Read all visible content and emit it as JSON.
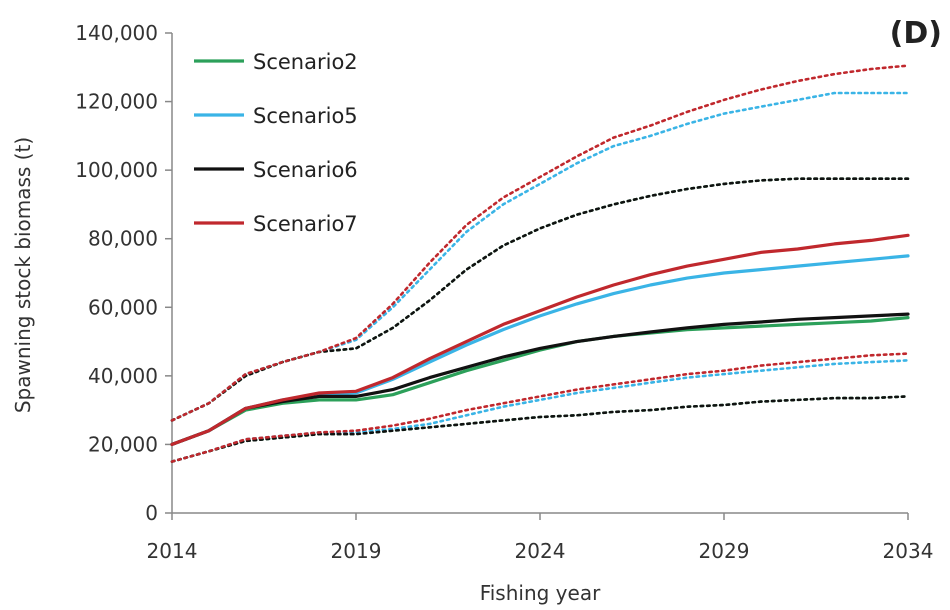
{
  "chart_data": {
    "type": "line",
    "panel_label": "(D)",
    "xlabel": "Fishing year",
    "ylabel": "Spawning stock biomass (t)",
    "xlim": [
      2014,
      2034
    ],
    "ylim": [
      0,
      140000
    ],
    "x_ticks": [
      2014,
      2019,
      2024,
      2029,
      2034
    ],
    "x_tick_labels": [
      "2014",
      "2019",
      "2024",
      "2029",
      "2034"
    ],
    "y_ticks": [
      0,
      20000,
      40000,
      60000,
      80000,
      100000,
      120000,
      140000
    ],
    "y_tick_labels": [
      "0",
      "20,000",
      "40,000",
      "60,000",
      "80,000",
      "100,000",
      "120,000",
      "140,000"
    ],
    "grid": false,
    "legend_position": "top-left",
    "x": [
      2014,
      2015,
      2016,
      2017,
      2018,
      2019,
      2020,
      2021,
      2022,
      2023,
      2024,
      2025,
      2026,
      2027,
      2028,
      2029,
      2030,
      2031,
      2032,
      2033,
      2034
    ],
    "series": [
      {
        "name": "Scenario2",
        "color": "#2ca05a",
        "values": [
          20000,
          24000,
          30000,
          32000,
          33000,
          33000,
          34500,
          38000,
          41500,
          44500,
          47500,
          50000,
          51500,
          52500,
          53500,
          54000,
          54500,
          55000,
          55500,
          56000,
          57000
        ],
        "upper": [
          27000,
          32000,
          40000,
          44000,
          47000,
          48000,
          54000,
          62000,
          71000,
          78000,
          83000,
          87000,
          90000,
          92500,
          94500,
          96000,
          97000,
          97500,
          97500,
          97500,
          97500
        ],
        "lower": [
          15000,
          18000,
          21000,
          22000,
          23000,
          23000,
          24000,
          25000,
          26000,
          27000,
          28000,
          28500,
          29500,
          30000,
          31000,
          31500,
          32500,
          33000,
          33500,
          33500,
          34000
        ]
      },
      {
        "name": "Scenario5",
        "color": "#3ab4e6",
        "values": [
          20000,
          24000,
          30500,
          33000,
          34500,
          35000,
          39000,
          44000,
          49000,
          53500,
          57500,
          61000,
          64000,
          66500,
          68500,
          70000,
          71000,
          72000,
          73000,
          74000,
          75000
        ],
        "upper": [
          27000,
          32000,
          40500,
          44000,
          47000,
          50500,
          60000,
          71000,
          82000,
          90000,
          96000,
          102000,
          107000,
          110000,
          113500,
          116500,
          118500,
          120500,
          122500,
          122500,
          122500
        ],
        "lower": [
          15000,
          18000,
          21500,
          22500,
          23500,
          23500,
          24500,
          26000,
          28500,
          31000,
          33000,
          35000,
          36500,
          38000,
          39500,
          40500,
          41500,
          42500,
          43500,
          44000,
          44500
        ]
      },
      {
        "name": "Scenario6",
        "color": "#111111",
        "values": [
          20000,
          24000,
          30500,
          32500,
          34000,
          34000,
          36000,
          39500,
          42500,
          45500,
          48000,
          50000,
          51500,
          52800,
          54000,
          55000,
          55700,
          56500,
          57000,
          57500,
          58000
        ],
        "upper": [
          27000,
          32000,
          40000,
          44000,
          47000,
          48000,
          54000,
          62000,
          71000,
          78000,
          83000,
          87000,
          90000,
          92500,
          94500,
          96000,
          97000,
          97500,
          97500,
          97500,
          97500
        ],
        "lower": [
          15000,
          18000,
          21000,
          22000,
          23000,
          23000,
          24000,
          25000,
          26000,
          27000,
          28000,
          28500,
          29500,
          30000,
          31000,
          31500,
          32500,
          33000,
          33500,
          33500,
          34000
        ]
      },
      {
        "name": "Scenario7",
        "color": "#c0282d",
        "values": [
          20000,
          24000,
          30500,
          33000,
          35000,
          35500,
          39500,
          45000,
          50000,
          55000,
          59000,
          63000,
          66500,
          69500,
          72000,
          74000,
          76000,
          77000,
          78500,
          79500,
          81000
        ],
        "upper": [
          27000,
          32000,
          40500,
          44000,
          47000,
          51000,
          61000,
          73000,
          84000,
          92000,
          98000,
          104000,
          109500,
          113000,
          117000,
          120500,
          123500,
          126000,
          128000,
          129500,
          130500
        ],
        "lower": [
          15000,
          18000,
          21500,
          22500,
          23500,
          24000,
          25500,
          27500,
          30000,
          32000,
          34000,
          36000,
          37500,
          39000,
          40500,
          41500,
          43000,
          44000,
          45000,
          46000,
          46500
        ]
      }
    ]
  }
}
